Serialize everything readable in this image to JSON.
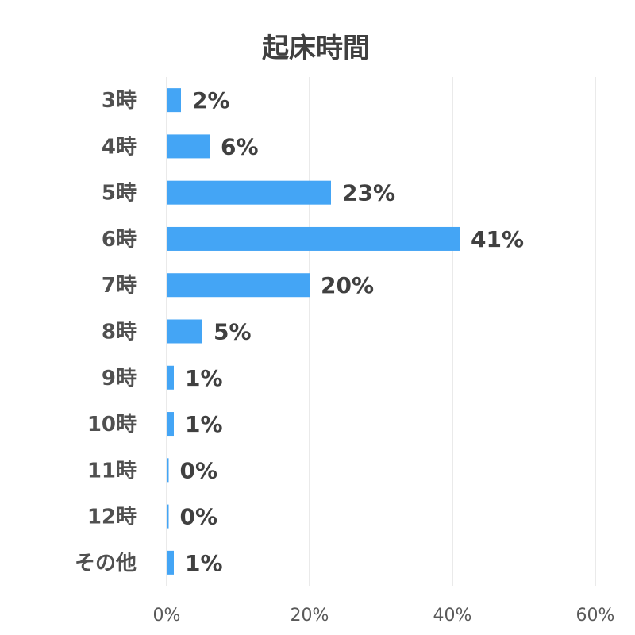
{
  "chart_data": {
    "type": "bar",
    "orientation": "horizontal",
    "title": "起床時間",
    "categories": [
      "3時",
      "4時",
      "5時",
      "6時",
      "7時",
      "8時",
      "9時",
      "10時",
      "11時",
      "12時",
      "その他"
    ],
    "values": [
      2,
      6,
      23,
      41,
      20,
      5,
      1,
      1,
      0,
      0,
      1
    ],
    "value_labels": [
      "2%",
      "6%",
      "23%",
      "41%",
      "20%",
      "5%",
      "1%",
      "1%",
      "0%",
      "0%",
      "1%"
    ],
    "xlim": [
      0,
      60
    ],
    "x_ticks": [
      0,
      20,
      40,
      60
    ],
    "x_tick_labels": [
      "0%",
      "20%",
      "40%",
      "60%"
    ],
    "grid": true,
    "bar_color": "#44a5f5"
  }
}
